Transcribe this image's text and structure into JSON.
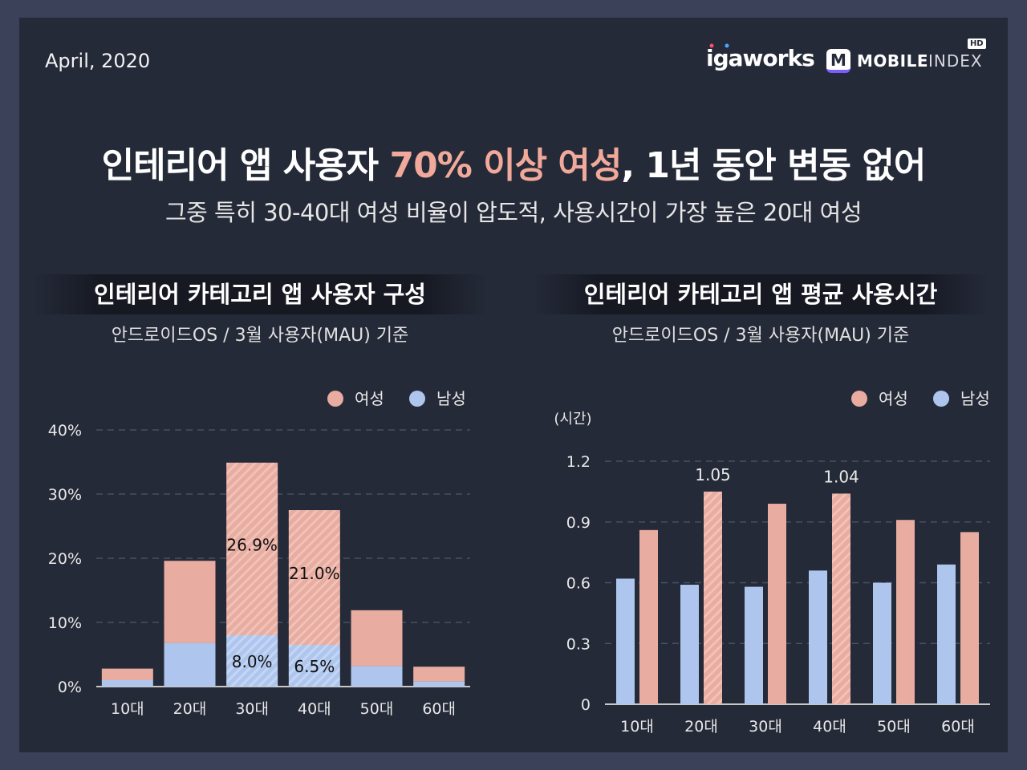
{
  "header": {
    "date": "April, 2020",
    "logo_igaworks": "igaworks",
    "logo_mobileindex_1": "MOBILE",
    "logo_mobileindex_2": "INDEX",
    "logo_mobileindex_badge": "HD",
    "logo_m": "M"
  },
  "headline": {
    "title_part1": "인테리어 앱 사용자 ",
    "title_highlight": "70% 이상 여성",
    "title_part2": ", 1년 동안 변동 없어",
    "subtitle": "그중 특히 30-40대 여성 비율이 압도적, 사용시간이 가장 높은 20대 여성"
  },
  "colors": {
    "female": "#e8aca0",
    "male": "#aec6ee",
    "background": "#252a38",
    "frame": "#3b4159",
    "highlight": "#f0a99a"
  },
  "chart_data": [
    {
      "type": "bar",
      "stacked": true,
      "title": "인테리어 카테고리 앱 사용자 구성",
      "subtitle": "안드로이드OS / 3월 사용자(MAU) 기준",
      "categories": [
        "10대",
        "20대",
        "30대",
        "40대",
        "50대",
        "60대"
      ],
      "series": [
        {
          "name": "남성",
          "values": [
            1.0,
            6.8,
            8.0,
            6.5,
            3.2,
            0.8
          ]
        },
        {
          "name": "여성",
          "values": [
            1.8,
            12.8,
            26.9,
            21.0,
            8.7,
            2.3
          ]
        }
      ],
      "highlighted_categories": [
        "30대",
        "40대"
      ],
      "data_labels": [
        {
          "category": "30대",
          "series": "여성",
          "text": "26.9%"
        },
        {
          "category": "40대",
          "series": "여성",
          "text": "21.0%"
        },
        {
          "category": "30대",
          "series": "남성",
          "text": "8.0%"
        },
        {
          "category": "40대",
          "series": "남성",
          "text": "6.5%"
        }
      ],
      "yticks": [
        "0%",
        "10%",
        "20%",
        "30%",
        "40%"
      ],
      "ylim": [
        0,
        40
      ],
      "legend": [
        "여성",
        "남성"
      ],
      "legend_position": "top-right",
      "grid": true
    },
    {
      "type": "bar",
      "stacked": false,
      "title": "인테리어 카테고리 앱 평균 사용시간",
      "subtitle": "안드로이드OS / 3월 사용자(MAU) 기준",
      "ylabel": "(시간)",
      "categories": [
        "10대",
        "20대",
        "30대",
        "40대",
        "50대",
        "60대"
      ],
      "series": [
        {
          "name": "남성",
          "values": [
            0.62,
            0.59,
            0.58,
            0.66,
            0.6,
            0.69
          ]
        },
        {
          "name": "여성",
          "values": [
            0.86,
            1.05,
            0.99,
            1.04,
            0.91,
            0.85
          ]
        }
      ],
      "highlighted_categories": [
        "20대",
        "40대"
      ],
      "data_labels": [
        {
          "category": "20대",
          "series": "여성",
          "text": "1.05"
        },
        {
          "category": "40대",
          "series": "여성",
          "text": "1.04"
        }
      ],
      "yticks": [
        "0",
        "0.3",
        "0.6",
        "0.9",
        "1.2"
      ],
      "ylim": [
        0,
        1.2
      ],
      "legend": [
        "여성",
        "남성"
      ],
      "legend_position": "top-right",
      "grid": true
    }
  ]
}
